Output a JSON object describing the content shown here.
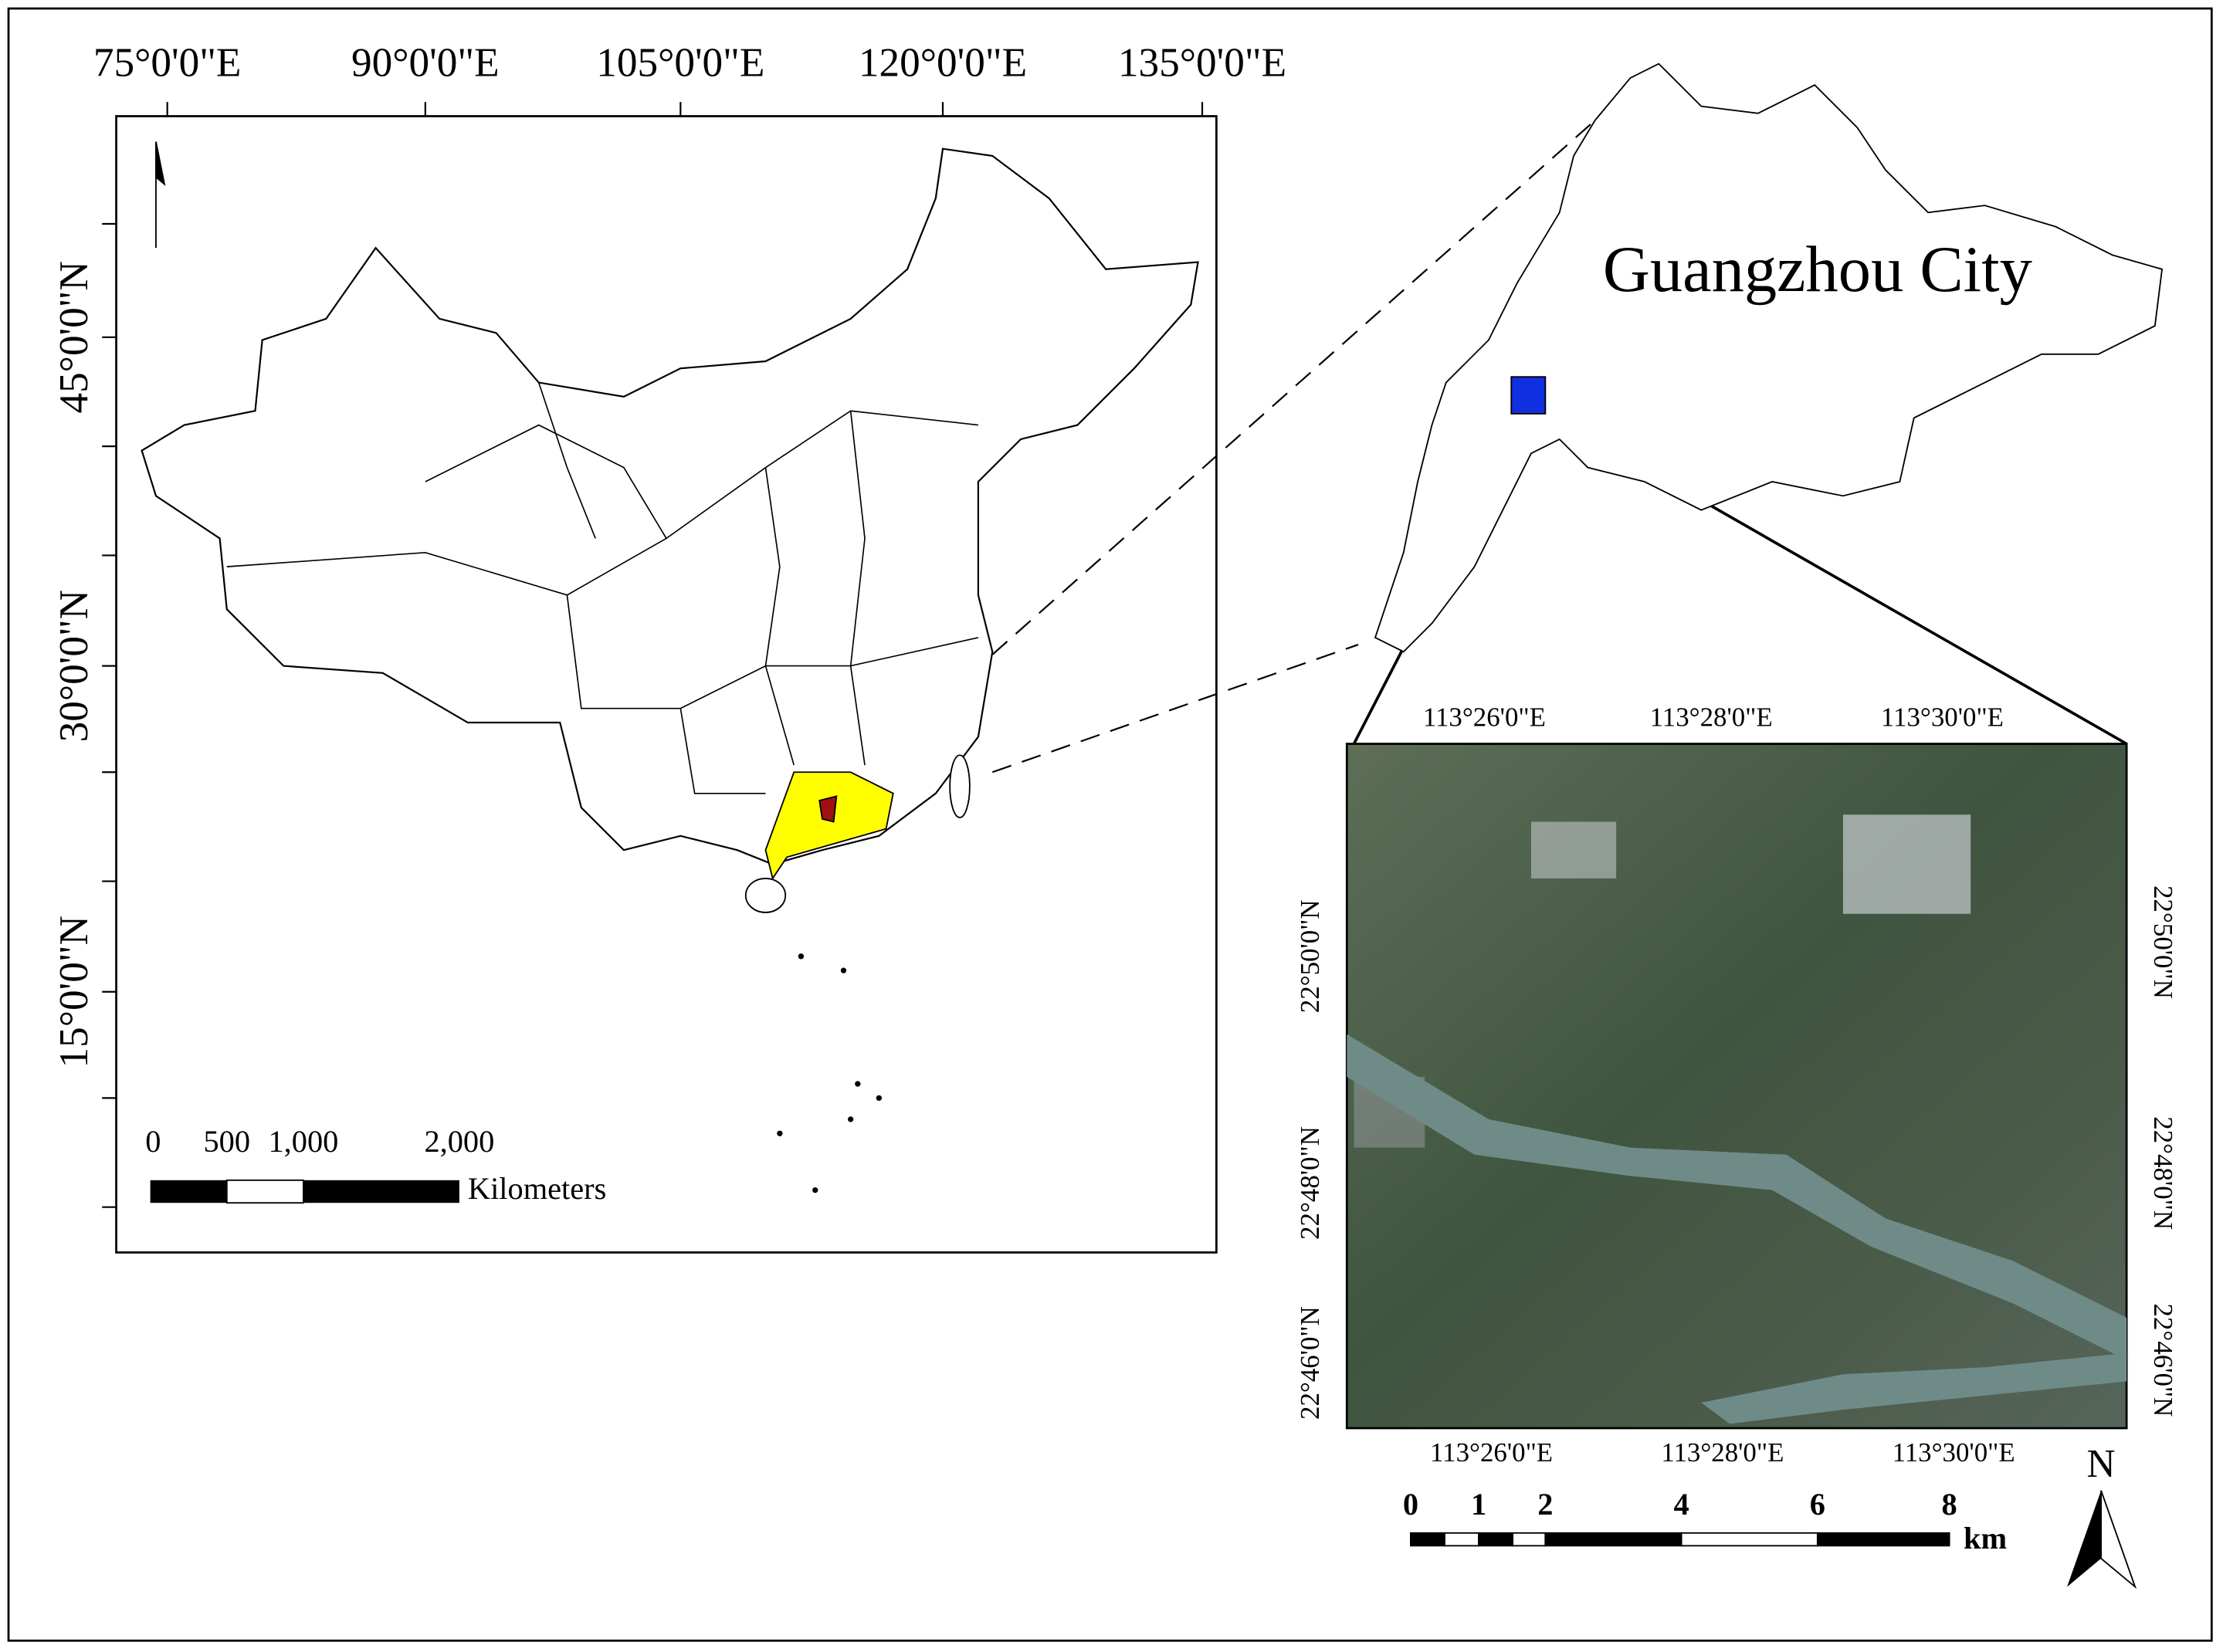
{
  "china_map": {
    "top_labels": [
      "75°0'0\"E",
      "90°0'0\"E",
      "105°0'0\"E",
      "120°0'0\"E",
      "135°0'0\"E"
    ],
    "left_labels": [
      "45°0'0\"N",
      "30°0'0\"N",
      "15°0'0\"N"
    ],
    "scale_labels": [
      "0",
      "500",
      "1,000",
      "2,000"
    ],
    "scale_unit": "Kilometers"
  },
  "city": {
    "title": "Guangzhou City"
  },
  "inset": {
    "top_labels": [
      "113°26'0\"E",
      "113°28'0\"E",
      "113°30'0\"E"
    ],
    "bottom_labels": [
      "113°26'0\"E",
      "113°28'0\"E",
      "113°30'0\"E"
    ],
    "left_labels": [
      "22°50'0\"N",
      "22°48'0\"N",
      "22°46'0\"N"
    ],
    "right_labels": [
      "22°50'0\"N",
      "22°48'0\"N",
      "22°46'0\"N"
    ],
    "scale_labels": [
      "0",
      "1",
      "2",
      "4",
      "6",
      "8"
    ],
    "scale_unit": "km",
    "north": "N"
  }
}
